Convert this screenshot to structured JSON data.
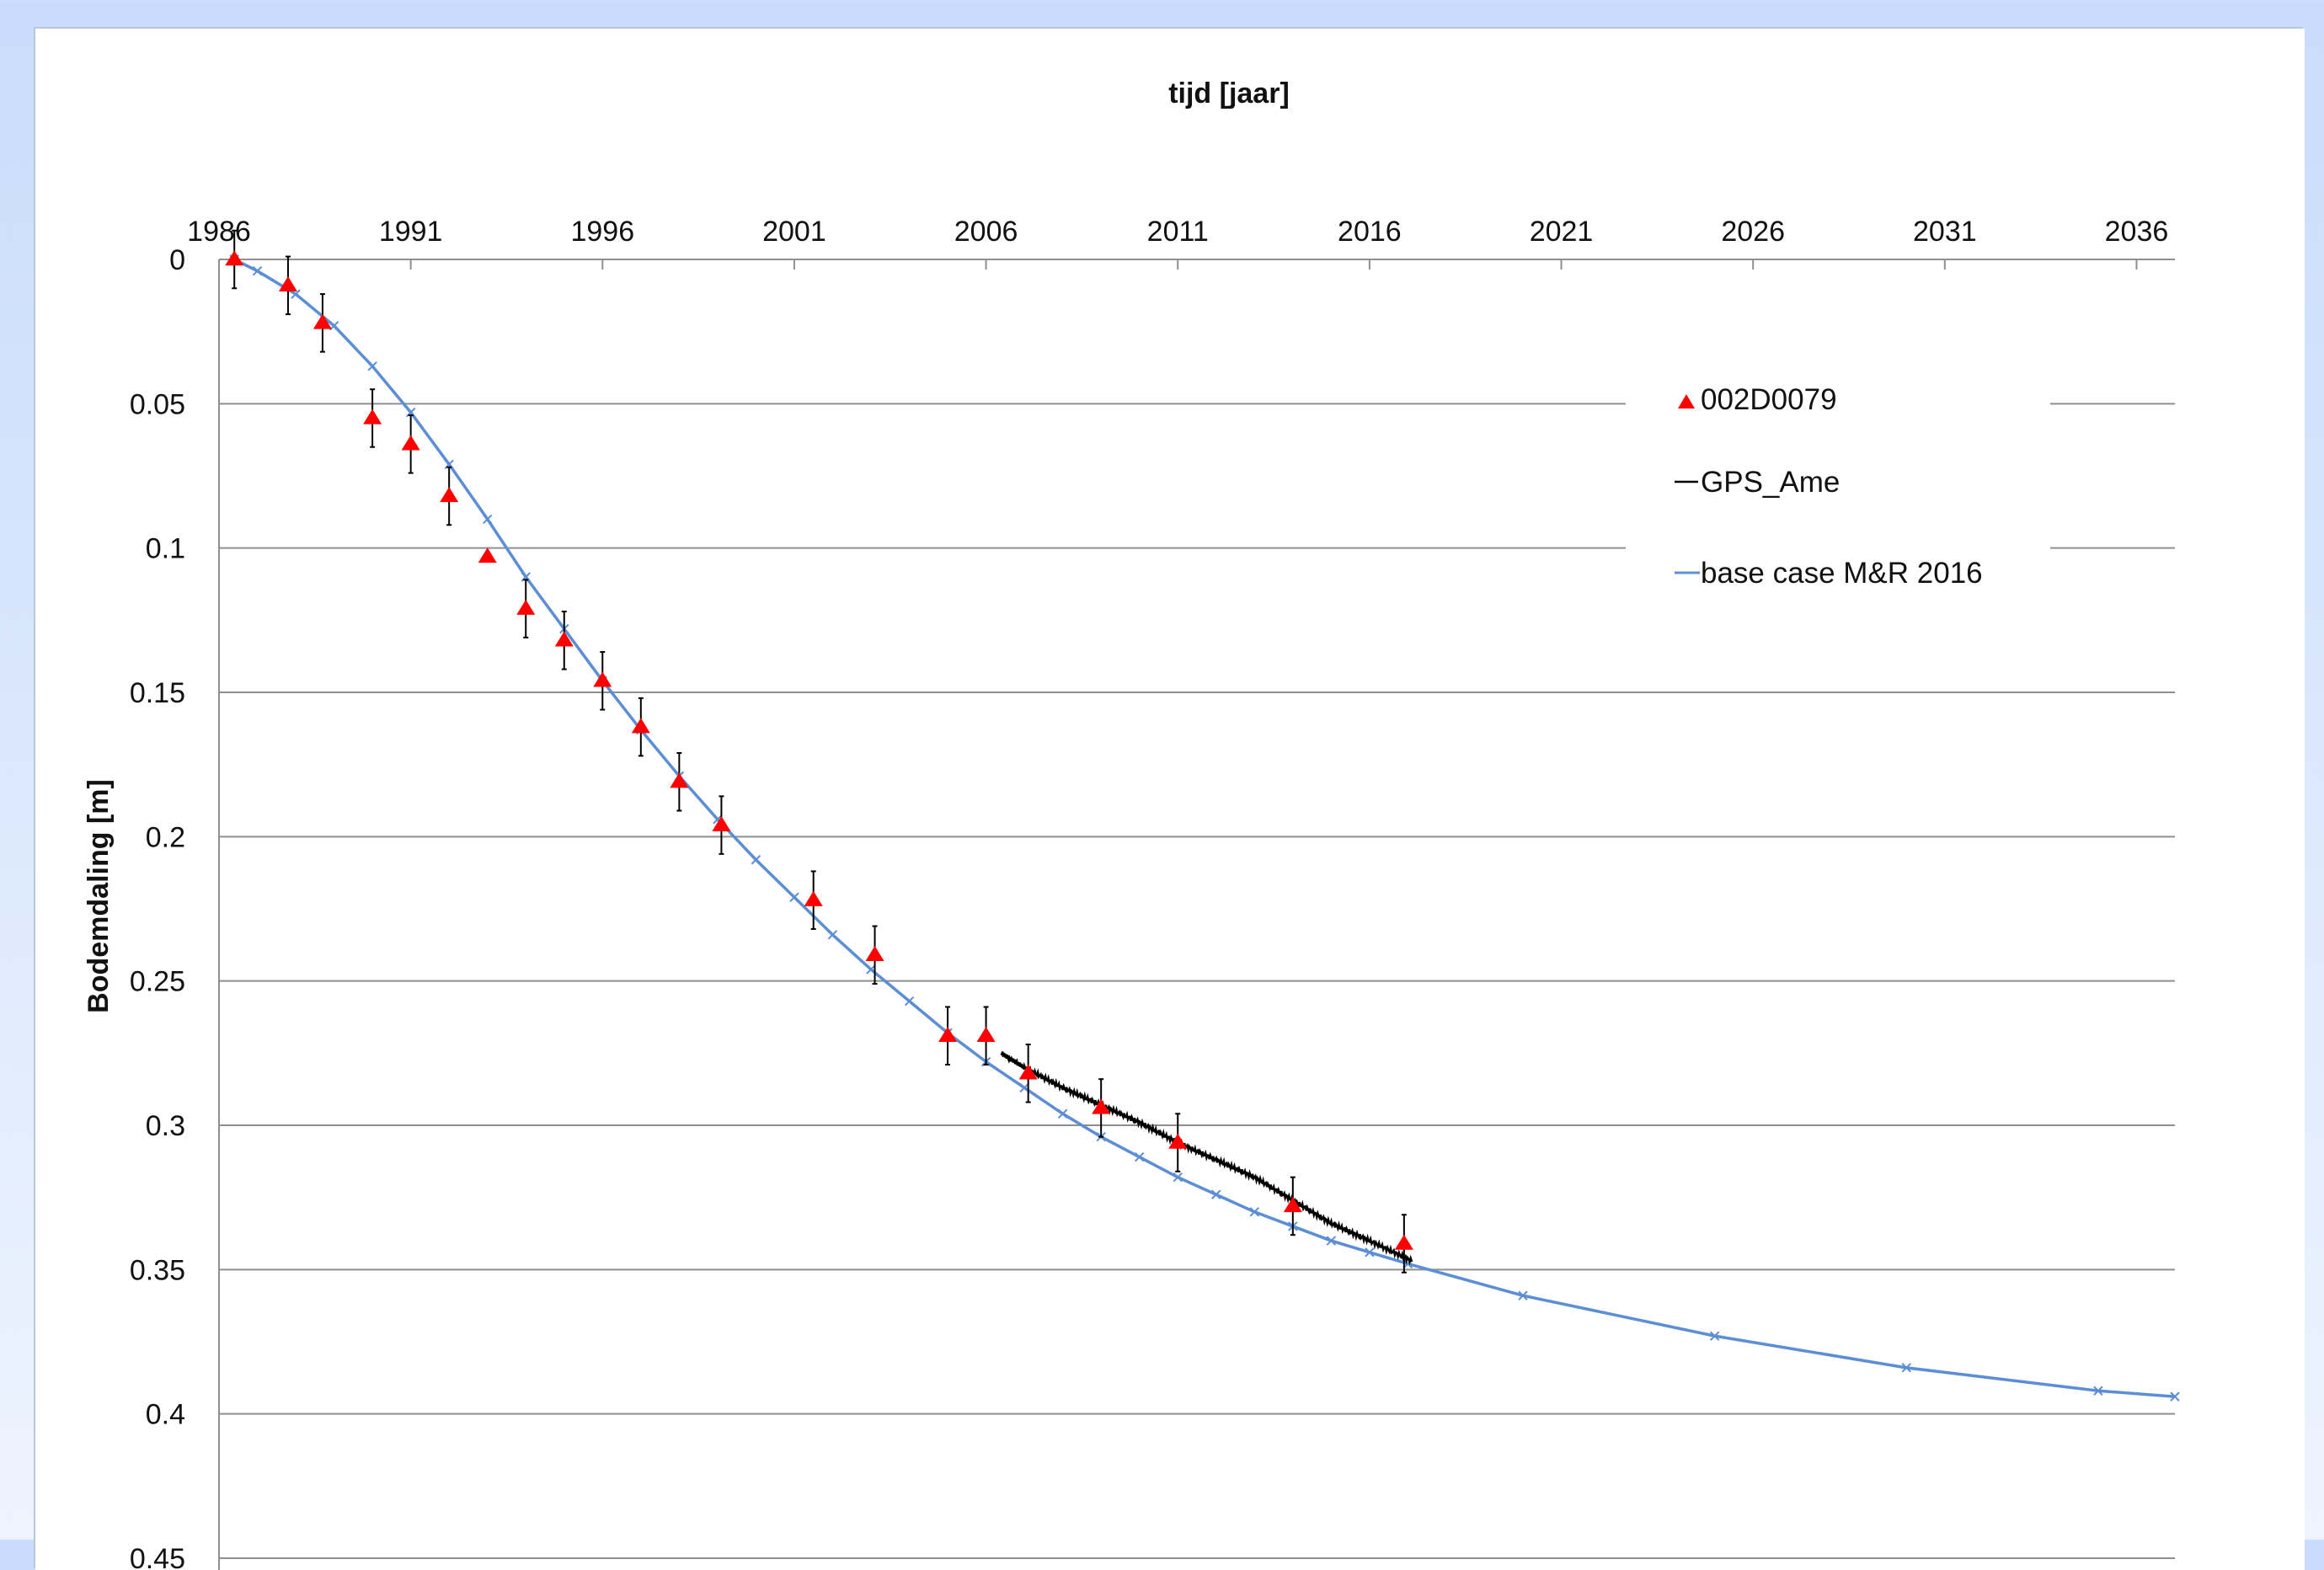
{
  "colors": {
    "background_top": "#c9dcfb",
    "background_bottom": "#eef4fe",
    "plot_background": "#ffffff",
    "marker_red": "#ff0000",
    "model_blue": "#5b8ed6",
    "gps_black": "#000000",
    "grid_gray": "#8f8f8f"
  },
  "chart_data": {
    "type": "scatter",
    "title": "",
    "xlabel": "tijd [jaar]",
    "ylabel": "Bodemdaling [m]",
    "x_axis_position": "top",
    "y_axis_inverted": true,
    "xlim": [
      1986,
      2037
    ],
    "ylim": [
      0,
      0.45
    ],
    "x_ticks": [
      "1986",
      "1991",
      "1996",
      "2001",
      "2006",
      "2011",
      "2016",
      "2021",
      "2026",
      "2031",
      "2036"
    ],
    "y_ticks": [
      "0",
      "0.05",
      "0.1",
      "0.15",
      "0.2",
      "0.25",
      "0.3",
      "0.35",
      "0.4",
      "0.45"
    ],
    "grid": true,
    "legend_position": "top-right",
    "legend": [
      "002D0079",
      "GPS_Ame",
      "base case M&R 2016"
    ],
    "series": [
      {
        "name": "002D0079",
        "kind": "points-with-errorbars",
        "marker": "triangle",
        "color": "#ff0000",
        "points": [
          {
            "x": 1986.4,
            "y": 0.0,
            "err": 0.01
          },
          {
            "x": 1987.8,
            "y": 0.009,
            "err": 0.01
          },
          {
            "x": 1988.7,
            "y": 0.022,
            "err": 0.01
          },
          {
            "x": 1990.0,
            "y": 0.055,
            "err": 0.01
          },
          {
            "x": 1991.0,
            "y": 0.064,
            "err": 0.01
          },
          {
            "x": 1992.0,
            "y": 0.082,
            "err": 0.01
          },
          {
            "x": 1993.0,
            "y": 0.103,
            "err": 0.0
          },
          {
            "x": 1994.0,
            "y": 0.121,
            "err": 0.01
          },
          {
            "x": 1995.0,
            "y": 0.132,
            "err": 0.01
          },
          {
            "x": 1996.0,
            "y": 0.146,
            "err": 0.01
          },
          {
            "x": 1997.0,
            "y": 0.162,
            "err": 0.01
          },
          {
            "x": 1998.0,
            "y": 0.181,
            "err": 0.01
          },
          {
            "x": 1999.1,
            "y": 0.196,
            "err": 0.01
          },
          {
            "x": 2001.5,
            "y": 0.222,
            "err": 0.01
          },
          {
            "x": 2003.1,
            "y": 0.241,
            "err": 0.01
          },
          {
            "x": 2005.0,
            "y": 0.269,
            "err": 0.01
          },
          {
            "x": 2006.0,
            "y": 0.269,
            "err": 0.01
          },
          {
            "x": 2007.1,
            "y": 0.282,
            "err": 0.01
          },
          {
            "x": 2009.0,
            "y": 0.294,
            "err": 0.01
          },
          {
            "x": 2011.0,
            "y": 0.306,
            "err": 0.01
          },
          {
            "x": 2014.0,
            "y": 0.328,
            "err": 0.01
          },
          {
            "x": 2016.9,
            "y": 0.341,
            "err": 0.01
          }
        ]
      },
      {
        "name": "GPS_Ame",
        "kind": "line",
        "color": "#000000",
        "x": [
          2006.4,
          2007.0,
          2008.0,
          2009.0,
          2010.0,
          2011.0,
          2012.0,
          2013.0,
          2014.0,
          2015.0,
          2016.0,
          2017.1
        ],
        "y": [
          0.275,
          0.28,
          0.287,
          0.293,
          0.299,
          0.306,
          0.312,
          0.318,
          0.326,
          0.334,
          0.34,
          0.347
        ]
      },
      {
        "name": "base case M&R 2016",
        "kind": "line-with-markers",
        "color": "#5b8ed6",
        "x": [
          1986.4,
          1987.0,
          1988.0,
          1989.0,
          1990.0,
          1991.0,
          1992.0,
          1993.0,
          1994.0,
          1995.0,
          1996.0,
          1997.0,
          1998.0,
          1999.0,
          2000.0,
          2001.0,
          2002.0,
          2003.0,
          2004.0,
          2005.0,
          2006.0,
          2007.0,
          2008.0,
          2009.0,
          2010.0,
          2011.0,
          2012.0,
          2013.0,
          2014.0,
          2015.0,
          2016.0,
          2017.0,
          2020.0,
          2025.0,
          2030.0,
          2035.0,
          2037.0
        ],
        "y": [
          0.0,
          0.004,
          0.012,
          0.023,
          0.037,
          0.053,
          0.071,
          0.09,
          0.11,
          0.128,
          0.146,
          0.163,
          0.179,
          0.194,
          0.208,
          0.221,
          0.234,
          0.246,
          0.257,
          0.268,
          0.278,
          0.287,
          0.296,
          0.304,
          0.311,
          0.318,
          0.324,
          0.33,
          0.335,
          0.34,
          0.344,
          0.348,
          0.359,
          0.373,
          0.384,
          0.392,
          0.394
        ]
      }
    ]
  }
}
